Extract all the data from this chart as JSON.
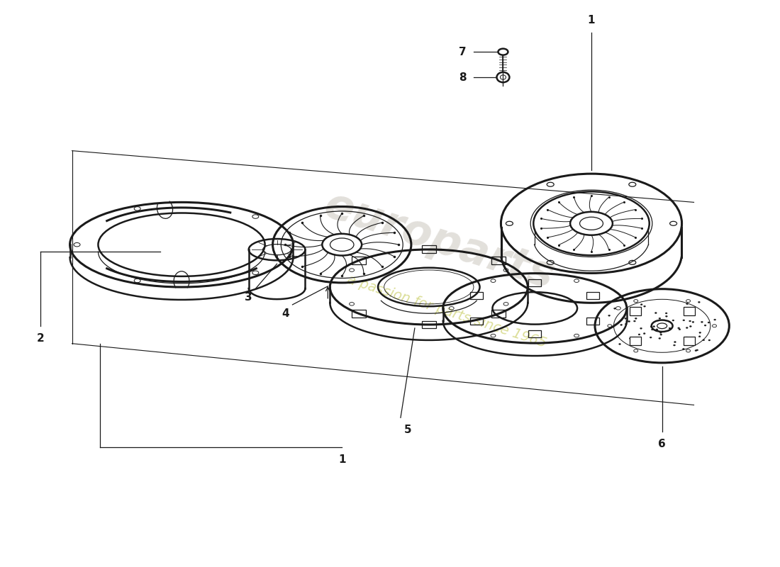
{
  "background_color": "#ffffff",
  "line_color": "#1a1a1a",
  "lw": 1.8,
  "lw_thin": 0.9,
  "lw_thick": 2.2,
  "watermark1": "europarts",
  "watermark2": "a passion for parts since 1965",
  "wm1_color": "#c0bab0",
  "wm2_color": "#c8cc60",
  "parts_labels": [
    "1",
    "2",
    "3",
    "4",
    "5",
    "6",
    "7",
    "8"
  ]
}
